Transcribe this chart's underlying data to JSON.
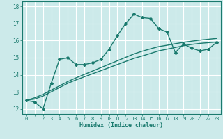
{
  "xlabel": "Humidex (Indice chaleur)",
  "bg_color": "#cceaea",
  "grid_color": "#ffffff",
  "line_color": "#1a7a6e",
  "marker": "D",
  "marker_size": 2.0,
  "line_width": 1.0,
  "xlim": [
    -0.5,
    23.5
  ],
  "ylim": [
    11.7,
    18.3
  ],
  "yticks": [
    12,
    13,
    14,
    15,
    16,
    17,
    18
  ],
  "xticks": [
    0,
    1,
    2,
    3,
    4,
    5,
    6,
    7,
    8,
    9,
    10,
    11,
    12,
    13,
    14,
    15,
    16,
    17,
    18,
    19,
    20,
    21,
    22,
    23
  ],
  "xtick_labels": [
    "0",
    "1",
    "2",
    "3",
    "4",
    "5",
    "6",
    "7",
    "8",
    "9",
    "10",
    "11",
    "12",
    "13",
    "14",
    "15",
    "16",
    "17",
    "18",
    "19",
    "20",
    "21",
    "22",
    "23"
  ],
  "main_series": [
    12.5,
    12.4,
    12.0,
    13.5,
    14.9,
    15.0,
    14.6,
    14.6,
    14.7,
    14.9,
    15.5,
    16.3,
    17.0,
    17.55,
    17.35,
    17.3,
    16.7,
    16.5,
    15.3,
    15.8,
    15.55,
    15.4,
    15.5,
    15.9
  ],
  "trend1": [
    12.5,
    12.58,
    12.75,
    13.0,
    13.25,
    13.5,
    13.7,
    13.88,
    14.06,
    14.24,
    14.42,
    14.6,
    14.78,
    14.96,
    15.1,
    15.25,
    15.4,
    15.5,
    15.6,
    15.7,
    15.78,
    15.84,
    15.88,
    15.92
  ],
  "trend2": [
    12.5,
    12.65,
    12.85,
    13.1,
    13.35,
    13.6,
    13.82,
    14.02,
    14.22,
    14.42,
    14.62,
    14.82,
    15.02,
    15.22,
    15.38,
    15.52,
    15.65,
    15.73,
    15.82,
    15.9,
    15.97,
    16.03,
    16.08,
    16.13
  ]
}
